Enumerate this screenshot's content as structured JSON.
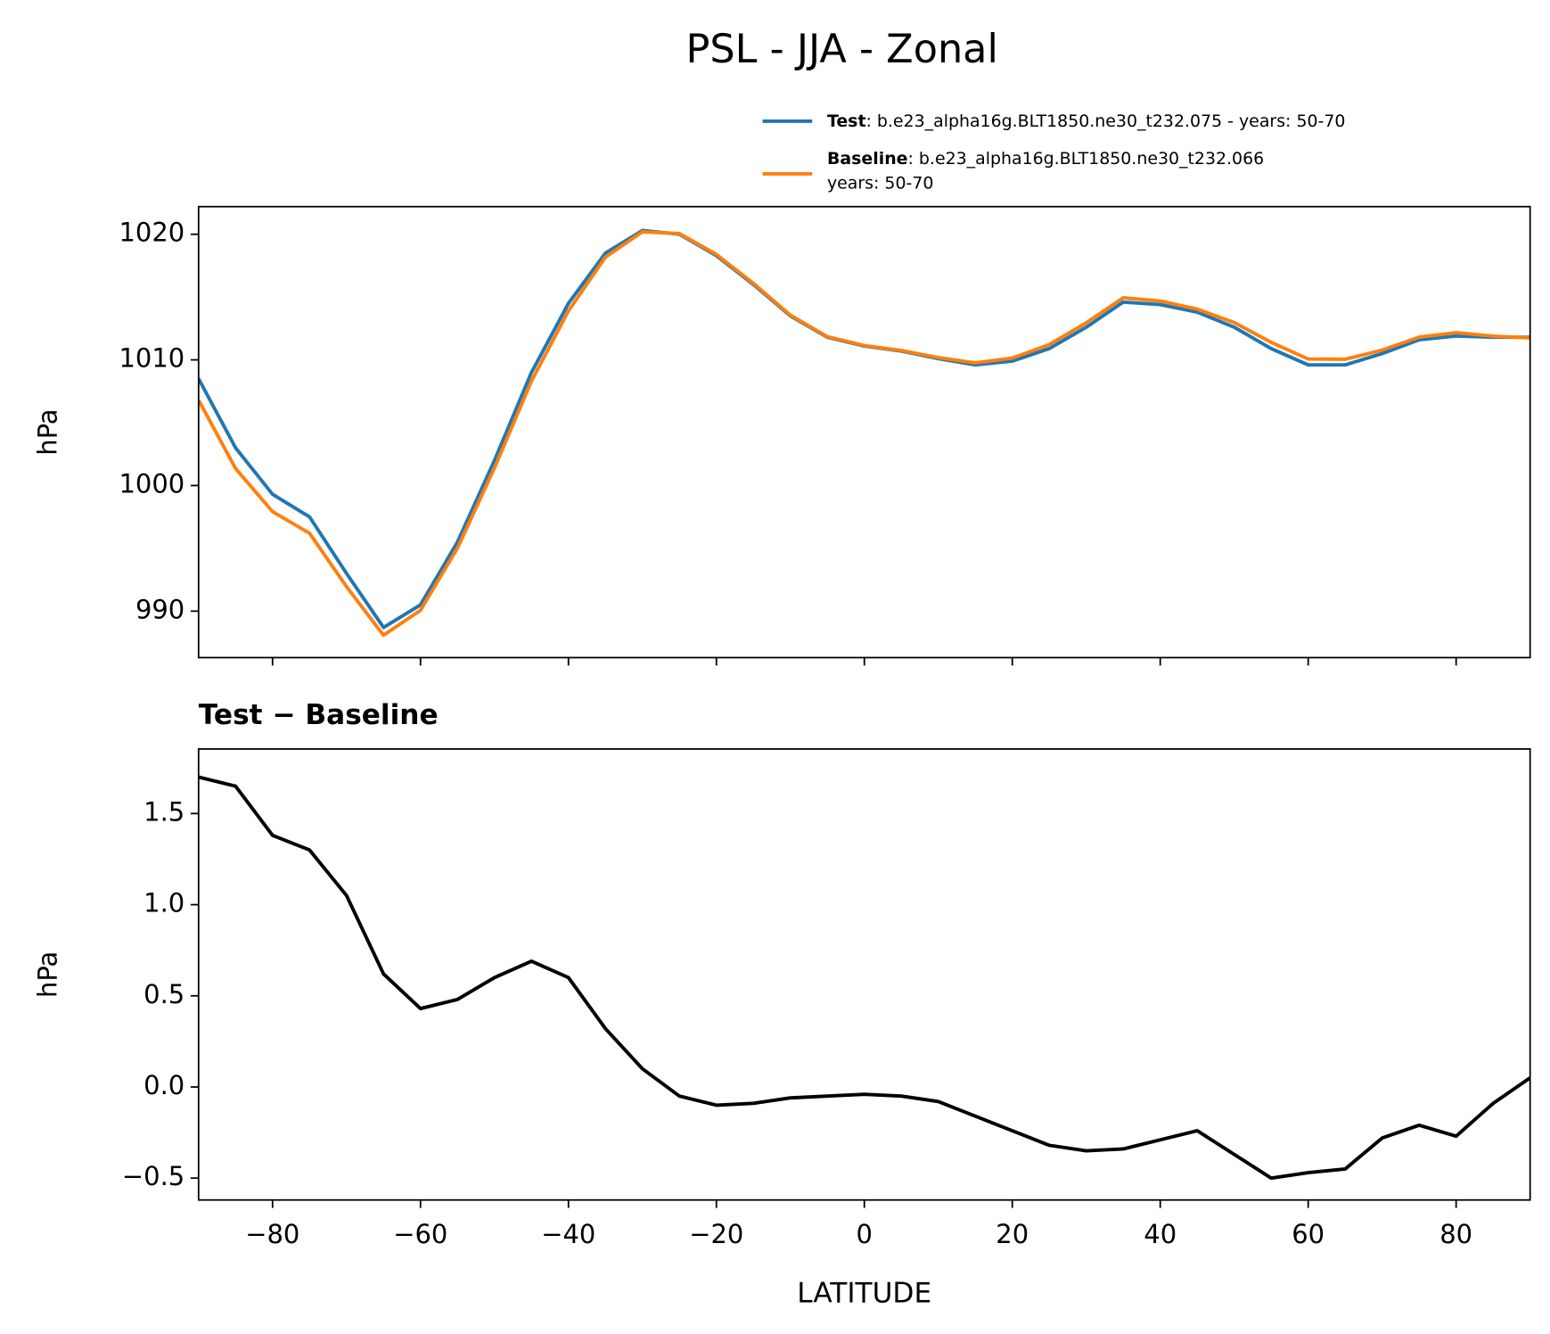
{
  "chart_data": [
    {
      "type": "line",
      "title": "PSL - JJA - Zonal",
      "ylabel": "hPa",
      "x": [
        -90,
        -85,
        -80,
        -75,
        -70,
        -65,
        -60,
        -55,
        -50,
        -45,
        -40,
        -35,
        -30,
        -25,
        -20,
        -15,
        -10,
        -5,
        0,
        5,
        10,
        15,
        20,
        25,
        30,
        35,
        40,
        45,
        50,
        55,
        60,
        65,
        70,
        75,
        80,
        85,
        90
      ],
      "series": [
        {
          "name": "Test",
          "description": [
            ": b.e23_alpha16g.BLT1850.ne30_t232.075 - years: 50-70"
          ],
          "color": "#1f77b4",
          "values": [
            1008.5,
            1003.0,
            999.3,
            997.5,
            993.0,
            988.7,
            990.5,
            995.5,
            1002.0,
            1009.0,
            1014.5,
            1018.5,
            1020.3,
            1020.0,
            1018.3,
            1016.0,
            1013.5,
            1011.8,
            1011.1,
            1010.7,
            1010.1,
            1009.6,
            1009.9,
            1010.9,
            1012.6,
            1014.6,
            1014.4,
            1013.8,
            1012.6,
            1010.9,
            1009.6,
            1009.6,
            1010.5,
            1011.6,
            1011.9,
            1011.8,
            1011.8
          ]
        },
        {
          "name": "Baseline",
          "description": [
            ": b.e23_alpha16g.BLT1850.ne30_t232.066",
            "years: 50-70"
          ],
          "color": "#ff7f0e",
          "values": [
            1006.8,
            1001.35,
            997.92,
            996.2,
            991.95,
            988.08,
            990.07,
            995.02,
            1001.4,
            1008.31,
            1013.9,
            1018.18,
            1020.2,
            1020.05,
            1018.4,
            1016.09,
            1013.56,
            1011.85,
            1011.14,
            1010.75,
            1010.18,
            1009.76,
            1010.14,
            1011.22,
            1012.95,
            1014.94,
            1014.69,
            1014.04,
            1012.97,
            1011.4,
            1010.07,
            1010.05,
            1010.78,
            1011.81,
            1012.17,
            1011.89,
            1011.75
          ]
        }
      ],
      "xlim": [
        -90,
        90
      ],
      "xticks": [
        -80,
        -60,
        -40,
        -20,
        0,
        20,
        40,
        60,
        80
      ],
      "ylim": [
        986.3,
        1022.2
      ],
      "yticks": [
        990,
        1000,
        1010,
        1020
      ]
    },
    {
      "type": "line",
      "title": "Test − Baseline",
      "ylabel": "hPa",
      "xlabel": "LATITUDE",
      "x": [
        -90,
        -85,
        -80,
        -75,
        -70,
        -65,
        -60,
        -55,
        -50,
        -45,
        -40,
        -35,
        -30,
        -25,
        -20,
        -15,
        -10,
        -5,
        0,
        5,
        10,
        15,
        20,
        25,
        30,
        35,
        40,
        45,
        50,
        55,
        60,
        65,
        70,
        75,
        80,
        85,
        90
      ],
      "series": [
        {
          "color": "#000000",
          "values": [
            1.7,
            1.65,
            1.38,
            1.3,
            1.05,
            0.62,
            0.43,
            0.48,
            0.6,
            0.69,
            0.6,
            0.32,
            0.1,
            -0.05,
            -0.1,
            -0.09,
            -0.06,
            -0.05,
            -0.04,
            -0.05,
            -0.08,
            -0.16,
            -0.24,
            -0.32,
            -0.35,
            -0.34,
            -0.29,
            -0.24,
            -0.37,
            -0.5,
            -0.47,
            -0.45,
            -0.28,
            -0.21,
            -0.27,
            -0.09,
            0.05
          ]
        }
      ],
      "xlim": [
        -90,
        90
      ],
      "xticks": [
        {
          "value": -80,
          "label": "−80"
        },
        {
          "value": -60,
          "label": "−60"
        },
        {
          "value": -40,
          "label": "−40"
        },
        {
          "value": -20,
          "label": "−20"
        },
        0,
        20,
        40,
        60,
        80
      ],
      "ylim": [
        -0.62,
        1.854
      ],
      "yticks": [
        {
          "value": -0.5,
          "label": "−0.5"
        },
        {
          "value": 0,
          "label": "0.0"
        },
        0.5,
        {
          "value": 1,
          "label": "1.0"
        },
        1.5
      ]
    }
  ]
}
